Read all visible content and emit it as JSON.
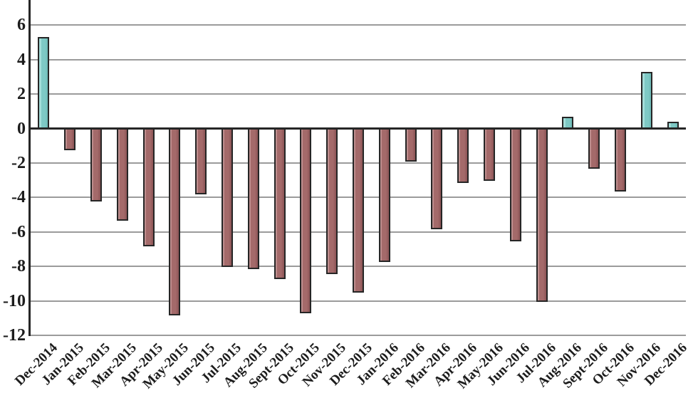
{
  "chart_data": {
    "type": "bar",
    "title": "",
    "xlabel": "",
    "ylabel": "",
    "categories": [
      "Dec-2014",
      "Jan-2015",
      "Feb-2015",
      "Mar-2015",
      "Apr-2015",
      "May-2015",
      "Jun-2015",
      "Jul-2015",
      "Aug-2015",
      "Sept-2015",
      "Oct-2015",
      "Nov-2015",
      "Dec-2015",
      "Jan-2016",
      "Feb-2016",
      "Mar-2016",
      "Apr-2016",
      "May-2016",
      "Jun-2016",
      "Jul-2016",
      "Aug-2016",
      "Sept-2016",
      "Oct-2016",
      "Nov-2016",
      "Dec-2016"
    ],
    "values": [
      5.3,
      -1.2,
      -4.2,
      -5.3,
      -6.8,
      -10.8,
      -3.8,
      -8.0,
      -8.1,
      -8.7,
      -10.7,
      -8.4,
      -9.5,
      -7.7,
      -1.9,
      -5.8,
      -3.1,
      -3.0,
      -6.5,
      -10.0,
      0.7,
      -2.3,
      -3.6,
      3.3,
      0.4
    ],
    "yticks": [
      6,
      4,
      2,
      0,
      -2,
      -4,
      -6,
      -8,
      -10,
      -12
    ],
    "ylim": [
      -12,
      7.4
    ],
    "grid": true,
    "legend": "none",
    "positive_color": "#7EC9C5",
    "negative_color": "#A46A6A",
    "gridline_color": "#9B9B9B",
    "axis_color": "#262626"
  }
}
